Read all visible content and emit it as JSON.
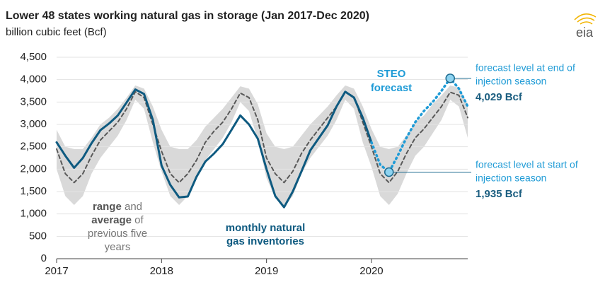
{
  "chart_data": {
    "type": "line",
    "title": "Lower 48 states working natural gas in storage (Jan 2017-Dec 2020)",
    "subtitle": "billion cubic feet (Bcf)",
    "logo": "eia",
    "x": [
      2017,
      2017.083,
      2017.167,
      2017.25,
      2017.333,
      2017.417,
      2017.5,
      2017.583,
      2017.667,
      2017.75,
      2017.833,
      2017.917,
      2018,
      2018.083,
      2018.167,
      2018.25,
      2018.333,
      2018.417,
      2018.5,
      2018.583,
      2018.667,
      2018.75,
      2018.833,
      2018.917,
      2019,
      2019.083,
      2019.167,
      2019.25,
      2019.333,
      2019.417,
      2019.5,
      2019.583,
      2019.667,
      2019.75,
      2019.833,
      2019.917,
      2020,
      2020.083,
      2020.167,
      2020.25,
      2020.333,
      2020.417,
      2020.5,
      2020.583,
      2020.667,
      2020.75,
      2020.833,
      2020.917
    ],
    "xlim": [
      2017,
      2020.917
    ],
    "xticks": [
      2017,
      2018,
      2019,
      2020
    ],
    "ylim": [
      0,
      4500
    ],
    "yticks": [
      0,
      500,
      {
        "value": 1000,
        "label": "1,000"
      },
      {
        "value": 1500,
        "label": "1,500"
      },
      {
        "value": 2000,
        "label": "2,000"
      },
      {
        "value": 2500,
        "label": "2,500"
      },
      {
        "value": 3000,
        "label": "3,000"
      },
      {
        "value": 3500,
        "label": "3,500"
      },
      {
        "value": 4000,
        "label": "4,000"
      },
      {
        "value": 4500,
        "label": "4,500"
      }
    ],
    "grid": true,
    "range": {
      "color": "#d9d9d9",
      "high": [
        2880,
        2500,
        2450,
        2450,
        2700,
        3000,
        3150,
        3350,
        3600,
        3870,
        3800,
        3400,
        2880,
        2500,
        2450,
        2450,
        2650,
        2950,
        3150,
        3350,
        3600,
        3850,
        3800,
        3450,
        2800,
        2500,
        2450,
        2500,
        2750,
        3000,
        3200,
        3400,
        3650,
        3870,
        3800,
        3400,
        2900,
        2500,
        2450,
        2500,
        2750,
        3050,
        3200,
        3450,
        3650,
        3870,
        3820,
        3450
      ],
      "low": [
        2000,
        1400,
        1200,
        1400,
        1900,
        2250,
        2500,
        2750,
        3100,
        3550,
        3350,
        2600,
        1950,
        1400,
        1200,
        1400,
        1800,
        2200,
        2450,
        2700,
        3050,
        3500,
        3300,
        2650,
        1800,
        1350,
        1150,
        1400,
        1900,
        2250,
        2500,
        2750,
        3100,
        3550,
        3350,
        2600,
        2050,
        1400,
        1200,
        1450,
        1900,
        2300,
        2500,
        2800,
        3100,
        3550,
        3400,
        2700
      ]
    },
    "series": [
      {
        "role": "average",
        "color": "#595959",
        "style": "dashed",
        "values": [
          2450,
          1900,
          1700,
          1900,
          2300,
          2650,
          2850,
          3050,
          3350,
          3730,
          3600,
          3000,
          2400,
          1900,
          1700,
          1900,
          2200,
          2600,
          2850,
          3050,
          3350,
          3700,
          3600,
          3100,
          2250,
          1900,
          1700,
          1950,
          2350,
          2650,
          2900,
          3150,
          3400,
          3720,
          3620,
          3050,
          2500,
          1900,
          1700,
          1950,
          2350,
          2700,
          2900,
          3150,
          3400,
          3720,
          3650,
          3150
        ]
      },
      {
        "role": "actual",
        "color": "#0e5a80",
        "style": "solid",
        "values": [
          2600,
          2300,
          2030,
          2250,
          2580,
          2870,
          3020,
          3200,
          3490,
          3780,
          3680,
          3100,
          2080,
          1650,
          1370,
          1390,
          1830,
          2170,
          2350,
          2560,
          2880,
          3200,
          3000,
          2680,
          2000,
          1400,
          1150,
          1500,
          1950,
          2420,
          2700,
          2980,
          3400,
          3730,
          3600,
          3150,
          2600,
          null,
          null,
          null,
          null,
          null,
          null,
          null,
          null,
          null,
          null,
          null
        ]
      },
      {
        "role": "forecast",
        "color": "#1f9bd6",
        "style": "dotted",
        "values": [
          null,
          null,
          null,
          null,
          null,
          null,
          null,
          null,
          null,
          null,
          null,
          null,
          null,
          null,
          null,
          null,
          null,
          null,
          null,
          null,
          null,
          null,
          null,
          null,
          null,
          null,
          null,
          null,
          null,
          null,
          null,
          null,
          null,
          null,
          null,
          null,
          2600,
          2100,
          1935,
          2300,
          2700,
          3050,
          3300,
          3500,
          3750,
          4029,
          3800,
          3400
        ]
      }
    ],
    "highlights": [
      {
        "series": 2,
        "index": 38
      },
      {
        "series": 2,
        "index": 45
      }
    ],
    "annotations": {
      "steo": [
        "STEO",
        "forecast"
      ],
      "end": [
        "forecast level at end of",
        "injection season",
        "4,029 Bcf"
      ],
      "start": [
        "forecast level at start of",
        "injection season",
        "1,935 Bcf"
      ],
      "inventories": [
        "monthly natural",
        "gas inventories"
      ],
      "range_text": [
        [
          {
            "text": "range",
            "bold": true
          },
          {
            "text": " and"
          }
        ],
        [
          {
            "text": "average",
            "bold": true
          },
          {
            "text": " of"
          }
        ],
        [
          {
            "text": "previous five"
          }
        ],
        [
          {
            "text": "years"
          }
        ]
      ]
    }
  }
}
